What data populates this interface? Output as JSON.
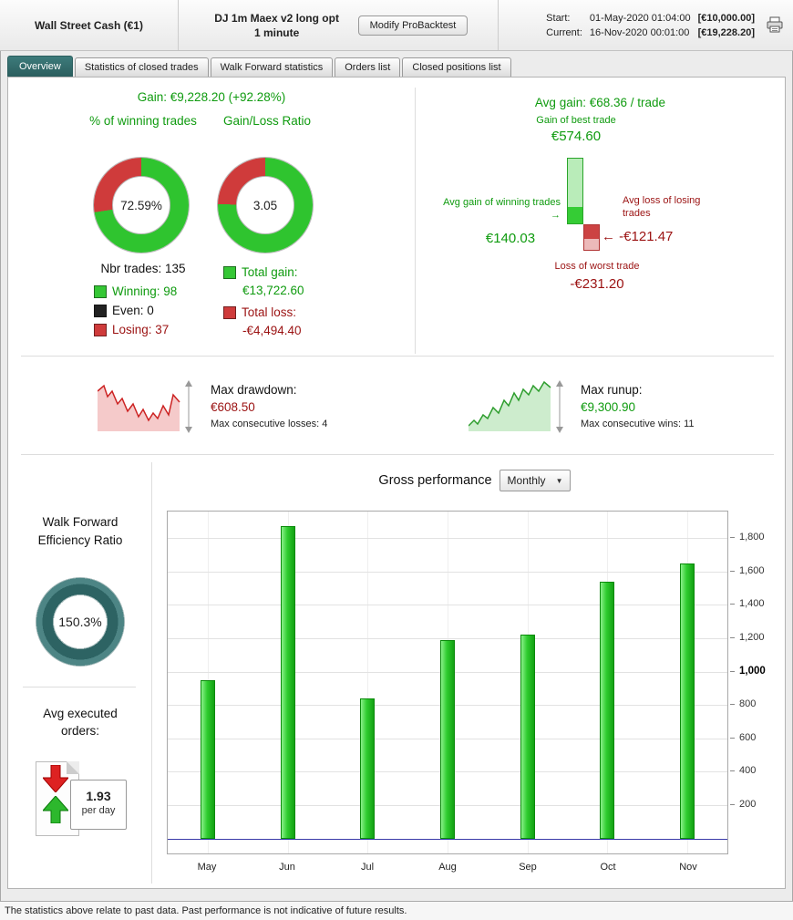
{
  "header": {
    "account_name": "Wall Street Cash (€1)",
    "strategy_name": "DJ 1m Maex v2 long opt",
    "strategy_timeframe": "1 minute",
    "modify_button_label": "Modify ProBacktest",
    "start_label": "Start:",
    "start_datetime": "01-May-2020 01:04:00",
    "start_capital": "[€10,000.00]",
    "current_label": "Current:",
    "current_datetime": "16-Nov-2020 00:01:00",
    "current_capital": "[€19,228.20]"
  },
  "tabs": {
    "overview": "Overview",
    "stats_closed": "Statistics of closed trades",
    "walk_forward": "Walk Forward statistics",
    "orders": "Orders list",
    "closed_positions": "Closed positions list"
  },
  "gain_summary": {
    "label": "Gain:",
    "value": "€9,228.20 (+92.28%)"
  },
  "winning_donut": {
    "title": "% of winning trades",
    "value": "72.59%",
    "percent_green": 72.59
  },
  "ratio_donut": {
    "title": "Gain/Loss Ratio",
    "value": "3.05",
    "percent_green": 75.31
  },
  "trade_counts": {
    "label": "Nbr trades: 135",
    "winning_label": "Winning: 98",
    "even_label": "Even: 0",
    "losing_label": "Losing: 37"
  },
  "totals": {
    "total_gain_label": "Total gain:",
    "total_gain_value": "€13,722.60",
    "total_loss_label": "Total loss:",
    "total_loss_value": "-€4,494.40"
  },
  "avg_gain": {
    "label": "Avg gain:",
    "value": "€68.36 / trade",
    "best_trade_label": "Gain of best trade",
    "best_trade_value": "€574.60",
    "best_trade_num": 574.6,
    "avg_win_label": "Avg gain of winning trades",
    "avg_win_value": "€140.03",
    "avg_win_num": 140.03,
    "avg_loss_label": "Avg loss of losing trades",
    "avg_loss_value": "-€121.47",
    "avg_loss_num": 121.47,
    "worst_trade_label": "Loss of worst trade",
    "worst_trade_value": "-€231.20",
    "worst_trade_num": 231.2,
    "right_arrow": "→",
    "left_arrow": "←"
  },
  "drawdown": {
    "label": "Max drawdown:",
    "value": "€608.50",
    "sub": "Max consecutive losses: 4"
  },
  "runup": {
    "label": "Max runup:",
    "value": "€9,300.90",
    "sub": "Max consecutive wins: 11"
  },
  "walk_forward_panel": {
    "title": "Walk Forward Efficiency Ratio",
    "value": "150.3%"
  },
  "avg_orders": {
    "title": "Avg executed orders:",
    "value": "1.93",
    "unit": "per day"
  },
  "gross_performance": {
    "title": "Gross performance",
    "period_selected": "Monthly"
  },
  "chart_data": {
    "type": "bar",
    "title": "Gross performance (Monthly)",
    "categories": [
      "May",
      "Jun",
      "Jul",
      "Aug",
      "Sep",
      "Oct",
      "Nov"
    ],
    "values": [
      950,
      1870,
      840,
      1190,
      1220,
      1540,
      1650
    ],
    "xlabel": "",
    "ylabel": "",
    "ylim": [
      -90,
      1960
    ],
    "yticks": [
      200,
      400,
      600,
      800,
      1000,
      1200,
      1400,
      1600,
      1800
    ],
    "ytick_labels": [
      "200",
      "400",
      "600",
      "800",
      "1,000",
      "1,200",
      "1,400",
      "1,600",
      "1,800"
    ],
    "bold_tick": "1,000",
    "grid": true,
    "legend": "none",
    "bar_color": "#2ecc2e",
    "zero_line_color": "#3a3aa8"
  },
  "footer": {
    "disclaimer": "The statistics above relate to past data. Past performance is not indicative of future results."
  },
  "colors": {
    "green": "#0f9b0f",
    "dark_red": "#9b1212",
    "teal": "#2d6363",
    "donut_green": "#2fc42f",
    "donut_red": "#cf3b3b"
  }
}
